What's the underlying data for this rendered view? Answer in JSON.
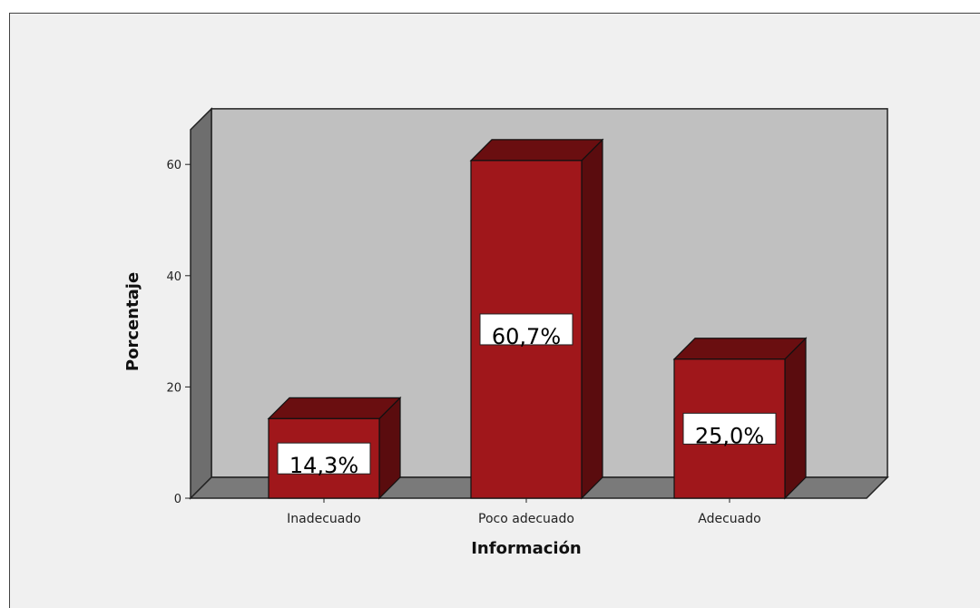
{
  "chart_data": {
    "type": "bar",
    "categories": [
      "Inadecuado",
      "Poco adecuado",
      "Adecuado"
    ],
    "values": [
      14.3,
      60.7,
      25.0
    ],
    "data_labels": [
      "14,3%",
      "60,7%",
      "25,0%"
    ],
    "xlabel": "Información",
    "ylabel": "Porcentaje",
    "ylim": [
      0,
      70
    ],
    "yticks": [
      0,
      20,
      40,
      60
    ],
    "style": "3d",
    "colors": {
      "bar_front": "#a0171b",
      "bar_top": "#6a0e10",
      "bar_side": "#5a0c0e",
      "plot_back": "#c0c0c0",
      "plot_left_wall": "#6e6e6e",
      "plot_floor": "#7a7a7a",
      "frame_background": "#f0f0f0"
    }
  }
}
